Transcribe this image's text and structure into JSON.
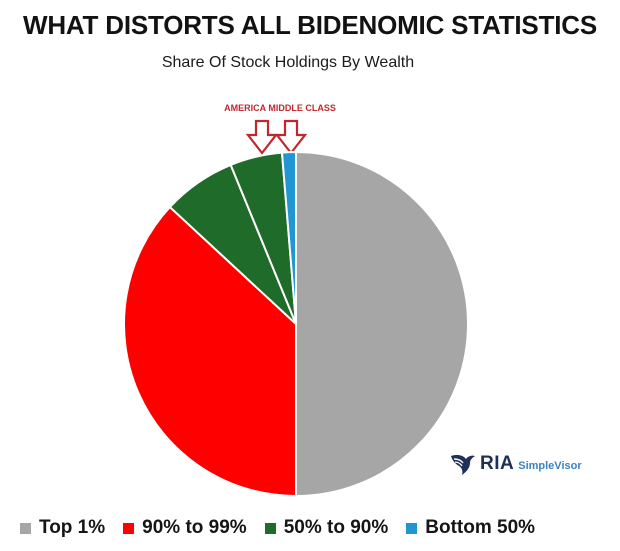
{
  "header": {
    "title": "WHAT DISTORTS ALL BIDENOMIC STATISTICS",
    "subtitle": "Share Of Stock Holdings By Wealth"
  },
  "annotation": {
    "text": "AMERICA MIDDLE CLASS",
    "color": "#c0282d",
    "icon": "down-arrow-outline-icon"
  },
  "logo": {
    "brand": "RIA",
    "product": "SimpleVisor",
    "icon": "eagle-logo-icon",
    "brand_color": "#1e2f58",
    "product_color": "#3b82c4"
  },
  "chart_data": {
    "type": "pie",
    "title": "Share Of Stock Holdings By Wealth",
    "start_angle_deg": 0,
    "direction": "clockwise",
    "slice_border_color": "#ffffff",
    "legend_position": "bottom",
    "slices": [
      {
        "label": "Top 1%",
        "value": 50.0,
        "color": "#a6a6a6"
      },
      {
        "label": "90% to 99%",
        "value": 36.9,
        "color": "#ff0000"
      },
      {
        "label": "50% to 90%",
        "value": 6.9,
        "color": "#1e6b2a"
      },
      {
        "label": "50% to 90%",
        "value": 4.9,
        "color": "#1e6b2a"
      },
      {
        "label": "Bottom 50%",
        "value": 1.3,
        "color": "#2196d3"
      }
    ],
    "legend": [
      {
        "label": "Top 1%",
        "color": "#a6a6a6"
      },
      {
        "label": "90% to 99%",
        "color": "#ff0000"
      },
      {
        "label": "50% to 90%",
        "color": "#1e6b2a"
      },
      {
        "label": "Bottom 50%",
        "color": "#2196d3"
      }
    ]
  }
}
